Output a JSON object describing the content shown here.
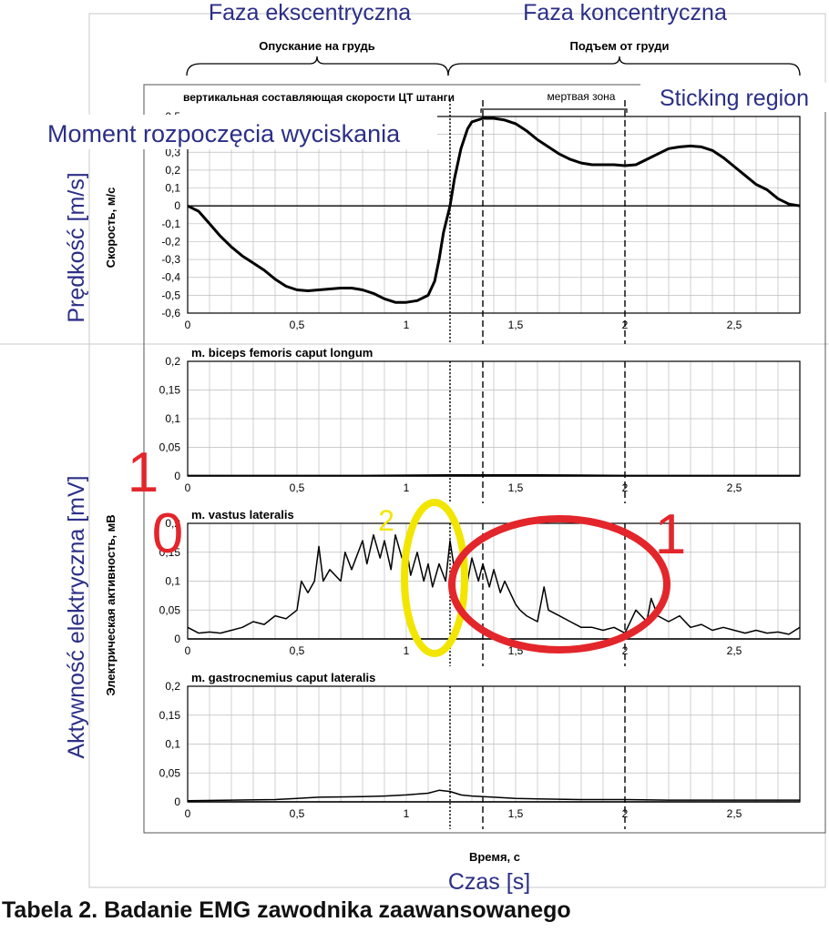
{
  "caption": "Tabela 2. Badanie EMG zawodnika zaawansowanego",
  "overlay": {
    "phase_eccentric": "Faza ekscentryczna",
    "phase_concentric": "Faza koncentryczna",
    "start_of_press": "Moment rozpoczęcia wyciskania",
    "sticking_region": "Sticking region",
    "y_velocity": "Prędkość [m/s]",
    "y_emg": "Aktywność elektryczna [mV]",
    "x_time": "Czas [s]",
    "marker_1_left": "1",
    "marker_0": "0",
    "marker_2": "2",
    "marker_1_right": "1",
    "colors": {
      "annotation_text": "#2b2f86",
      "red_marker": "#e3262b",
      "yellow_marker": "#f2e600"
    }
  },
  "original": {
    "lowering": "Опускание на грудь",
    "lifting": "Подъем от груди",
    "velocity_title": "вертикальная составляющая скорости ЦТ штанги",
    "dead_zone": "мертвая зона",
    "velocity_ylabel": "Скорость, м/с",
    "emg_ylabel": "Электрическая активность, мВ",
    "xlabel": "Время, с"
  },
  "chart_data": [
    {
      "type": "line",
      "title": "вертикальная составляющая скорости ЦТ штанги",
      "ylabel": "Скорость, м/с",
      "xlim": [
        0,
        2.8
      ],
      "ylim": [
        -0.6,
        0.5
      ],
      "x_ticks": [
        "0",
        "0,5",
        "1",
        "1,5",
        "2",
        "2,5"
      ],
      "y_ticks": [
        "-0,6",
        "-0,5",
        "-0,4",
        "-0,3",
        "-0,2",
        "-0,1",
        "0",
        "0,1",
        "0,2",
        "0,3",
        "0,4",
        "0,5"
      ],
      "grid": true,
      "series": [
        {
          "x": [
            0,
            0.05,
            0.1,
            0.15,
            0.2,
            0.25,
            0.3,
            0.35,
            0.4,
            0.45,
            0.5,
            0.55,
            0.6,
            0.65,
            0.7,
            0.75,
            0.8,
            0.85,
            0.9,
            0.95,
            1.0,
            1.05,
            1.1,
            1.13,
            1.15,
            1.17,
            1.2,
            1.22,
            1.25,
            1.28,
            1.3,
            1.35,
            1.4,
            1.45,
            1.5,
            1.55,
            1.6,
            1.65,
            1.7,
            1.75,
            1.8,
            1.85,
            1.9,
            1.95,
            2.0,
            2.05,
            2.1,
            2.15,
            2.2,
            2.25,
            2.3,
            2.35,
            2.4,
            2.45,
            2.5,
            2.55,
            2.6,
            2.65,
            2.7,
            2.75,
            2.8
          ],
          "y": [
            0,
            -0.03,
            -0.1,
            -0.17,
            -0.23,
            -0.28,
            -0.32,
            -0.36,
            -0.41,
            -0.45,
            -0.47,
            -0.475,
            -0.47,
            -0.465,
            -0.46,
            -0.46,
            -0.47,
            -0.49,
            -0.52,
            -0.54,
            -0.54,
            -0.53,
            -0.5,
            -0.42,
            -0.3,
            -0.15,
            0,
            0.15,
            0.32,
            0.43,
            0.47,
            0.49,
            0.49,
            0.48,
            0.46,
            0.42,
            0.37,
            0.33,
            0.29,
            0.26,
            0.24,
            0.23,
            0.23,
            0.23,
            0.225,
            0.23,
            0.26,
            0.29,
            0.32,
            0.33,
            0.335,
            0.33,
            0.31,
            0.27,
            0.22,
            0.17,
            0.12,
            0.09,
            0.04,
            0.01,
            0
          ]
        }
      ],
      "vlines": [
        {
          "x": 1.2,
          "style": "dotted"
        },
        {
          "x": 1.35,
          "style": "dashed"
        },
        {
          "x": 2.0,
          "style": "dashed"
        }
      ]
    },
    {
      "type": "line",
      "title": "m. biceps femoris caput longum",
      "xlim": [
        0,
        2.8
      ],
      "ylim": [
        0,
        0.2
      ],
      "x_ticks": [
        "0",
        "0,5",
        "1",
        "1,5",
        "2",
        "2,5"
      ],
      "y_ticks": [
        "0",
        "0,05",
        "0,1",
        "0,15",
        "0,2"
      ],
      "grid": true,
      "series": [
        {
          "x": [
            0,
            0.4,
            0.8,
            1.2,
            1.6,
            2.0,
            2.4,
            2.8
          ],
          "y": [
            0.001,
            0.001,
            0.001,
            0.002,
            0.002,
            0.001,
            0.001,
            0.001
          ]
        }
      ],
      "vlines": [
        {
          "x": 1.2,
          "style": "dotted"
        },
        {
          "x": 1.35,
          "style": "dashed"
        },
        {
          "x": 2.0,
          "style": "dashed"
        }
      ]
    },
    {
      "type": "line",
      "title": "m. vastus lateralis",
      "xlim": [
        0,
        2.8
      ],
      "ylim": [
        0,
        0.2
      ],
      "x_ticks": [
        "0",
        "0,5",
        "1",
        "1,5",
        "2",
        "2,5"
      ],
      "y_ticks": [
        "0",
        "0,05",
        "0,1",
        "0,15",
        "0,2"
      ],
      "grid": true,
      "series": [
        {
          "x": [
            0,
            0.05,
            0.1,
            0.15,
            0.2,
            0.25,
            0.3,
            0.35,
            0.4,
            0.45,
            0.5,
            0.52,
            0.55,
            0.58,
            0.6,
            0.62,
            0.65,
            0.7,
            0.72,
            0.75,
            0.8,
            0.82,
            0.85,
            0.88,
            0.9,
            0.93,
            0.95,
            0.98,
            1.0,
            1.02,
            1.05,
            1.08,
            1.1,
            1.12,
            1.15,
            1.18,
            1.2,
            1.22,
            1.25,
            1.28,
            1.3,
            1.33,
            1.35,
            1.38,
            1.4,
            1.43,
            1.45,
            1.5,
            1.52,
            1.55,
            1.6,
            1.63,
            1.65,
            1.7,
            1.75,
            1.8,
            1.85,
            1.9,
            1.95,
            2.0,
            2.05,
            2.1,
            2.12,
            2.15,
            2.2,
            2.25,
            2.3,
            2.35,
            2.4,
            2.45,
            2.5,
            2.55,
            2.6,
            2.65,
            2.7,
            2.75,
            2.8
          ],
          "y": [
            0.02,
            0.01,
            0.012,
            0.01,
            0.015,
            0.02,
            0.03,
            0.025,
            0.04,
            0.035,
            0.05,
            0.1,
            0.08,
            0.1,
            0.16,
            0.1,
            0.12,
            0.1,
            0.15,
            0.12,
            0.17,
            0.13,
            0.18,
            0.14,
            0.17,
            0.12,
            0.18,
            0.14,
            0.16,
            0.11,
            0.15,
            0.1,
            0.13,
            0.09,
            0.13,
            0.1,
            0.17,
            0.12,
            0.15,
            0.1,
            0.14,
            0.1,
            0.13,
            0.09,
            0.12,
            0.08,
            0.1,
            0.06,
            0.05,
            0.04,
            0.03,
            0.09,
            0.05,
            0.04,
            0.03,
            0.02,
            0.02,
            0.015,
            0.02,
            0.01,
            0.05,
            0.03,
            0.07,
            0.04,
            0.03,
            0.04,
            0.02,
            0.025,
            0.015,
            0.02,
            0.015,
            0.01,
            0.015,
            0.01,
            0.012,
            0.008,
            0.02
          ]
        }
      ],
      "vlines": [
        {
          "x": 1.2,
          "style": "dotted"
        },
        {
          "x": 1.35,
          "style": "dashed"
        },
        {
          "x": 2.0,
          "style": "dashed"
        }
      ]
    },
    {
      "type": "line",
      "title": "m. gastrocnemius caput lateralis",
      "xlim": [
        0,
        2.8
      ],
      "ylim": [
        0,
        0.2
      ],
      "x_ticks": [
        "0",
        "0,5",
        "1",
        "1,5",
        "2",
        "2,5"
      ],
      "y_ticks": [
        "0",
        "0,05",
        "0,1",
        "0,15",
        "0,2"
      ],
      "grid": true,
      "series": [
        {
          "x": [
            0,
            0.2,
            0.4,
            0.5,
            0.6,
            0.8,
            0.9,
            1.0,
            1.1,
            1.15,
            1.2,
            1.25,
            1.3,
            1.4,
            1.5,
            1.6,
            1.8,
            2.0,
            2.2,
            2.4,
            2.6,
            2.8
          ],
          "y": [
            0.002,
            0.003,
            0.004,
            0.006,
            0.008,
            0.009,
            0.01,
            0.012,
            0.015,
            0.02,
            0.018,
            0.012,
            0.01,
            0.008,
            0.006,
            0.005,
            0.004,
            0.004,
            0.003,
            0.003,
            0.003,
            0.003
          ]
        }
      ],
      "vlines": [
        {
          "x": 1.2,
          "style": "dotted"
        },
        {
          "x": 1.35,
          "style": "dashed"
        },
        {
          "x": 2.0,
          "style": "dashed"
        }
      ]
    }
  ]
}
